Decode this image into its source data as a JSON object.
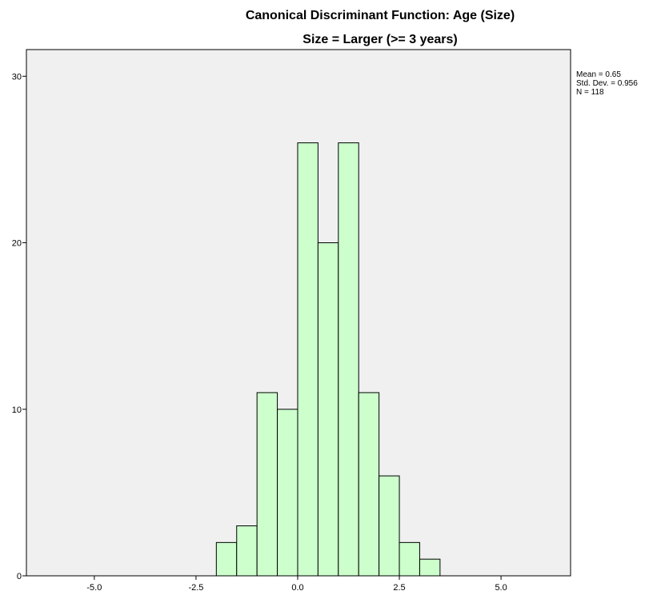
{
  "chart_data": {
    "type": "histogram",
    "title": "Canonical Discriminant Function: Age (Size)",
    "subtitle": "Size = Larger (>= 3 years)",
    "bins": [
      -2.0,
      -1.5,
      -1.0,
      -0.5,
      0.0,
      0.5,
      1.0,
      1.5,
      2.0,
      2.5,
      3.0,
      3.5
    ],
    "values": [
      2,
      3,
      11,
      10,
      26,
      20,
      26,
      11,
      6,
      2,
      1
    ],
    "color": "#ccffcc",
    "xlim": [
      -6.67,
      6.71
    ],
    "xticks": [
      {
        "value": -5,
        "label": "-5.0"
      },
      {
        "value": -2.5,
        "label": "-2.5"
      },
      {
        "value": 0,
        "label": "0.0"
      },
      2.5,
      {
        "value": 5,
        "label": "5.0"
      }
    ],
    "ylim": [
      0,
      31.6
    ],
    "yticks": [
      0,
      10,
      20,
      30
    ],
    "stats": [
      "Mean = 0.65",
      "Std. Dev. = 0.956",
      "N = 118"
    ]
  }
}
